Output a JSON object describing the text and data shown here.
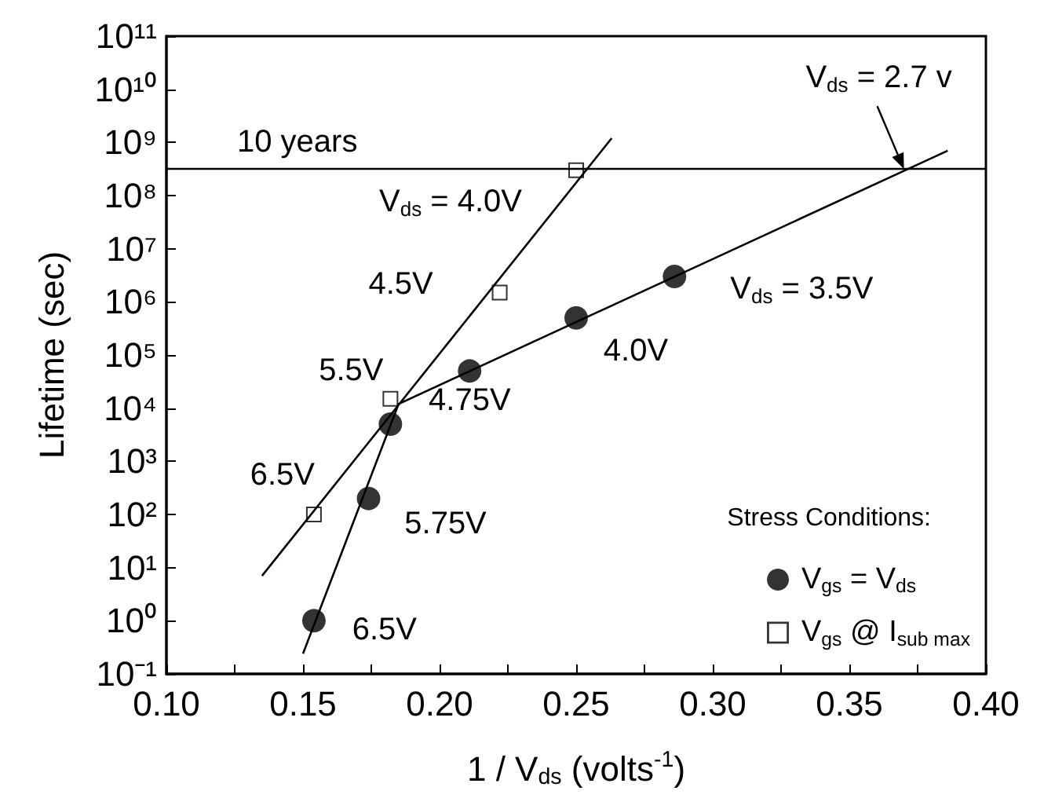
{
  "chart_data": {
    "type": "scatter",
    "xlabel": "1 / V$_{ds}$ (volts$^{-1}$)",
    "ylabel": "Lifetime (sec)",
    "legend_title": "Stress Conditions:",
    "series": [
      {
        "name": "V$_{gs}$ = V$_{ds}$",
        "type": "scatter",
        "marker": "circle",
        "color": "#000000",
        "x": [
          0.154,
          0.174,
          0.182,
          0.211,
          0.25,
          0.286
        ],
        "values": [
          1,
          200,
          5000,
          50000,
          500000,
          3000000
        ]
      },
      {
        "name": "V$_{gs}$ @ I$_{sub max}$",
        "type": "scatter",
        "marker": "square",
        "color": "#000000",
        "x": [
          0.154,
          0.182,
          0.222,
          0.25
        ],
        "values": [
          100,
          15000,
          1500000,
          300000000
        ]
      },
      {
        "type": "line",
        "marker": "none",
        "color": "#000000",
        "x": [
          0.15,
          0.185,
          0.386
        ],
        "values": [
          0.24,
          12000,
          700000000
        ]
      },
      {
        "type": "line",
        "marker": "none",
        "color": "#000000",
        "x": [
          0.135,
          0.263
        ],
        "values": [
          7,
          1200000000
        ]
      }
    ],
    "ref_lines": [
      {
        "axis": "y",
        "value": 315000000,
        "label": "10 years",
        "color": "#000000"
      }
    ],
    "annotations": [
      {
        "text": "V$_{ds}$ = 4.0V",
        "x": 0.25,
        "y": 300000000
      },
      {
        "text": "4.5V",
        "x": 0.222,
        "y": 1500000
      },
      {
        "text": "5.5V",
        "x": 0.182,
        "y": 15000
      },
      {
        "text": "6.5V",
        "x": 0.154,
        "y": 100
      },
      {
        "text": "6.5V",
        "x": 0.154,
        "y": 1
      },
      {
        "text": "5.75V",
        "x": 0.174,
        "y": 200
      },
      {
        "text": "4.75V",
        "x": 0.211,
        "y": 50000
      },
      {
        "text": "4.0V",
        "x": 0.25,
        "y": 500000
      },
      {
        "text": "V$_{ds}$ = 3.5V",
        "x": 0.286,
        "y": 3000000
      },
      {
        "text": "V$_{ds}$ = 2.7 v",
        "x": 0.37,
        "y": 315000000
      }
    ],
    "log": "y",
    "xlim": [
      0.1,
      0.4
    ],
    "xticks": [
      {
        "value": 0.1,
        "label": "0.10"
      },
      {
        "value": 0.125,
        "label": null
      },
      {
        "value": 0.15,
        "label": "0.15"
      },
      {
        "value": 0.175,
        "label": null
      },
      {
        "value": 0.2,
        "label": "0.20"
      },
      {
        "value": 0.225,
        "label": null
      },
      {
        "value": 0.25,
        "label": "0.25"
      },
      {
        "value": 0.275,
        "label": null
      },
      {
        "value": 0.3,
        "label": "0.30"
      },
      {
        "value": 0.325,
        "label": null
      },
      {
        "value": 0.35,
        "label": "0.35"
      },
      {
        "value": 0.375,
        "label": null
      },
      {
        "value": 0.4,
        "label": "0.40"
      }
    ],
    "ylim": [
      0.1,
      100000000000
    ],
    "yticks": [
      {
        "value": 0.1,
        "label": "10⁻¹"
      },
      {
        "value": 1,
        "label": "10⁰"
      },
      {
        "value": 10,
        "label": "10¹"
      },
      {
        "value": 100,
        "label": "10²"
      },
      {
        "value": 1000,
        "label": "10³"
      },
      {
        "value": 10000,
        "label": "10⁴"
      },
      {
        "value": 100000,
        "label": "10⁵"
      },
      {
        "value": 1000000,
        "label": "10⁶"
      },
      {
        "value": 10000000,
        "label": "10⁷"
      },
      {
        "value": 100000000,
        "label": "10⁸"
      },
      {
        "value": 1000000000,
        "label": "10⁹"
      },
      {
        "value": 10000000000,
        "label": "10¹⁰"
      },
      {
        "value": 100000000000,
        "label": "10¹¹"
      }
    ],
    "grid": false,
    "legend": "bottom right"
  }
}
